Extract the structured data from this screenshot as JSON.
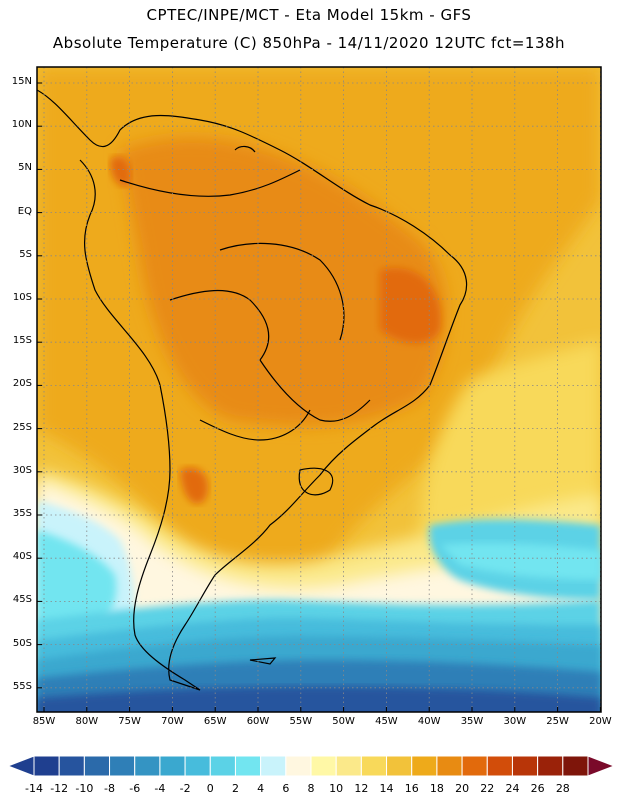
{
  "header": {
    "line1": "CPTEC/INPE/MCT -  Eta Model 15km - GFS",
    "line2": "Absolute Temperature (C) 850hPa - 14/11/2020 12UTC fct=138h"
  },
  "map": {
    "region": "South America",
    "lat_labels": [
      "15N",
      "10N",
      "5N",
      "EQ",
      "5S",
      "10S",
      "15S",
      "20S",
      "25S",
      "30S",
      "35S",
      "40S",
      "45S",
      "50S",
      "55S"
    ],
    "lon_labels": [
      "85W",
      "80W",
      "75W",
      "70W",
      "65W",
      "60W",
      "55W",
      "50W",
      "45W",
      "40W",
      "35W",
      "30W",
      "25W",
      "20W"
    ],
    "grid_style": "dotted"
  },
  "colorbar": {
    "levels": [
      "-14",
      "-12",
      "-10",
      "-8",
      "-6",
      "-4",
      "-2",
      "0",
      "2",
      "4",
      "6",
      "8",
      "10",
      "12",
      "14",
      "16",
      "18",
      "20",
      "22",
      "24",
      "26",
      "28"
    ],
    "colors": [
      "#1f3f8f",
      "#26549e",
      "#2b6aaa",
      "#2f7fb7",
      "#3494c3",
      "#3aa8cf",
      "#47bcdc",
      "#5bd2e6",
      "#72e5f0",
      "#c9f3fb",
      "#fff7e0",
      "#fff8a6",
      "#fbe98a",
      "#f8d95a",
      "#f2c23a",
      "#eeaa1a",
      "#e88b12",
      "#e26a0c",
      "#d24d0a",
      "#b83508",
      "#9a2209",
      "#7e150a"
    ]
  }
}
